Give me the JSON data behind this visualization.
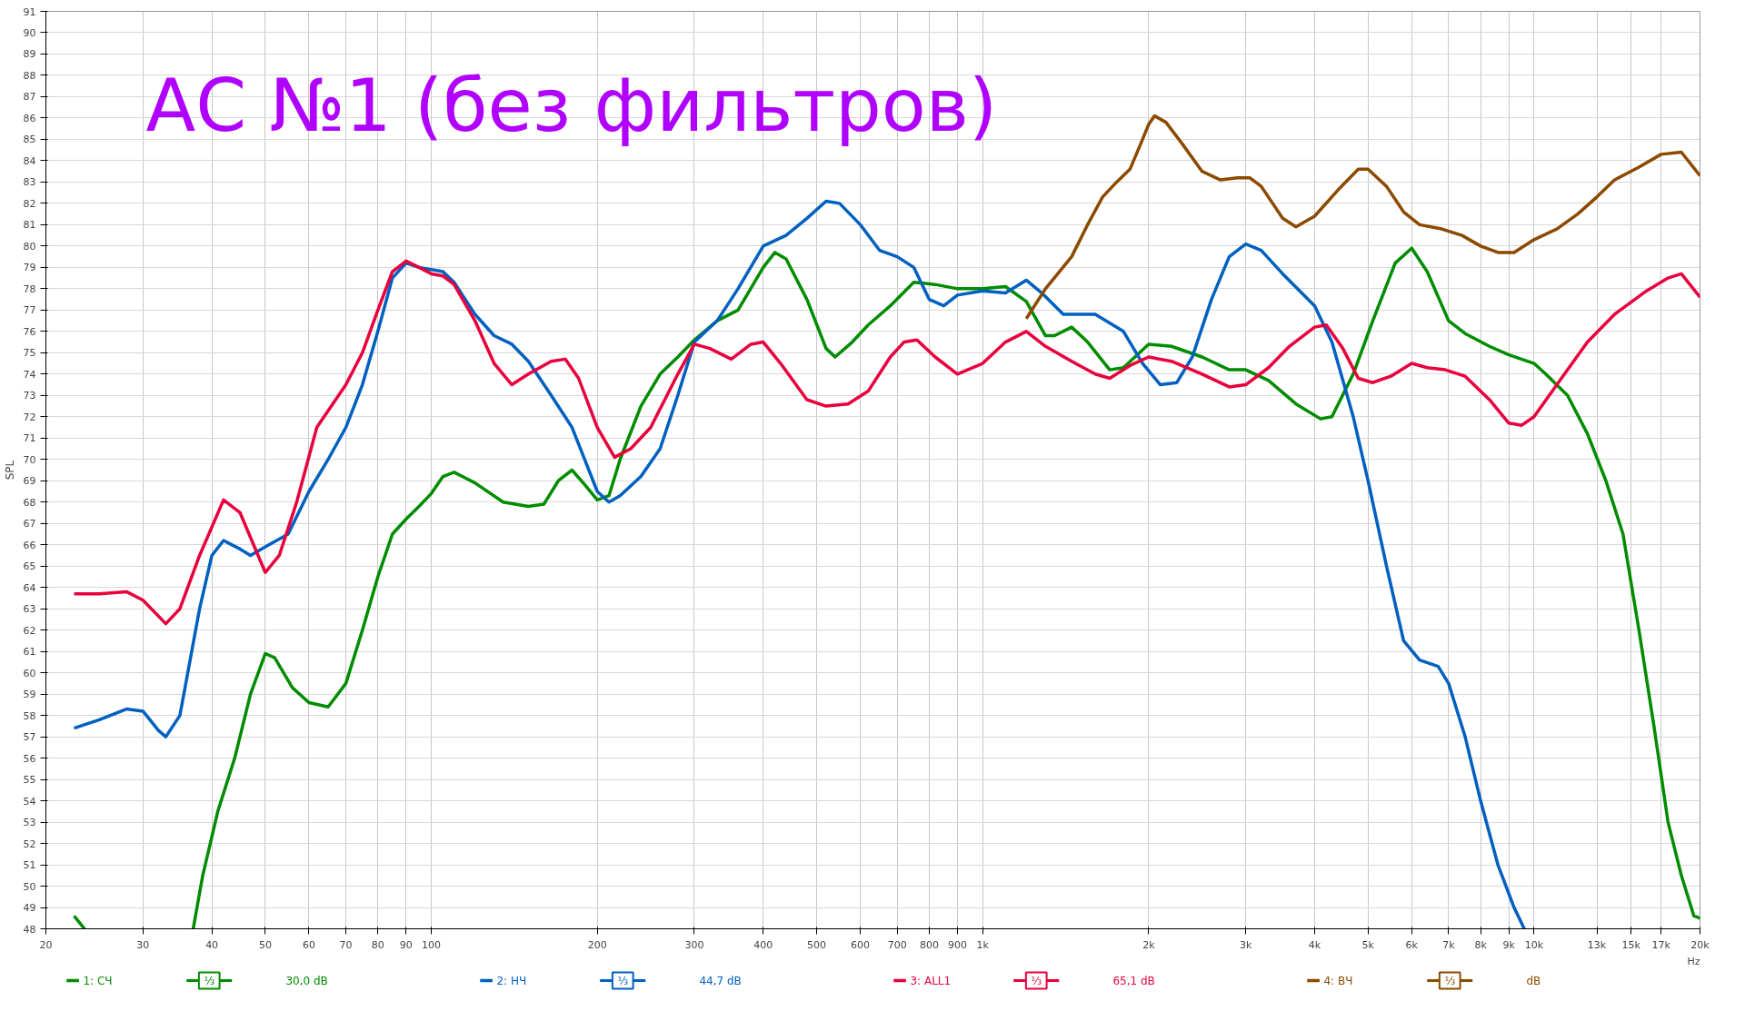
{
  "chart_data": {
    "type": "line",
    "title": "АС №1 (без фильтров)",
    "ylabel": "SPL",
    "log": "x",
    "grid": true,
    "legend": "bottom",
    "xlim": [
      20,
      20000
    ],
    "ylim": [
      48,
      91
    ],
    "xticks": [
      20,
      30,
      40,
      50,
      60,
      70,
      80,
      90,
      100,
      200,
      300,
      400,
      500,
      600,
      700,
      800,
      900,
      {
        "value": 1000,
        "label": "1k"
      },
      {
        "value": 2000,
        "label": "2k"
      },
      {
        "value": 3000,
        "label": "3k"
      },
      {
        "value": 4000,
        "label": "4k"
      },
      {
        "value": 5000,
        "label": "5k"
      },
      {
        "value": 6000,
        "label": "6k"
      },
      {
        "value": 7000,
        "label": "7k"
      },
      {
        "value": 8000,
        "label": "8k"
      },
      {
        "value": 9000,
        "label": "9k"
      },
      {
        "value": 10000,
        "label": "10k"
      },
      {
        "value": 13000,
        "label": "13k"
      },
      {
        "value": 15000,
        "label": "15k"
      },
      {
        "value": 17000,
        "label": "17k"
      },
      {
        "value": 20000,
        "label": "20k"
      }
    ],
    "xlabel": "Hz",
    "yticks": [
      48,
      49,
      50,
      51,
      52,
      53,
      54,
      55,
      56,
      57,
      58,
      59,
      60,
      61,
      62,
      63,
      64,
      65,
      66,
      67,
      68,
      69,
      70,
      71,
      72,
      73,
      74,
      75,
      76,
      77,
      78,
      79,
      80,
      81,
      82,
      83,
      84,
      85,
      86,
      87,
      88,
      89,
      90,
      91
    ],
    "annotations": [
      "⅓",
      "30,0 dB",
      "⅓",
      "44,7 dB",
      "⅓",
      "65,1 dB",
      "⅓",
      "dB"
    ],
    "series": [
      {
        "name": "1: СЧ",
        "color": "#008c00",
        "x": [
          22.5,
          23.5,
          30,
          37,
          38.5,
          41,
          44,
          47,
          50,
          52,
          56,
          60,
          65,
          70,
          75,
          80,
          85,
          90,
          95,
          100,
          105,
          110,
          120,
          135,
          150,
          160,
          170,
          180,
          190,
          200,
          210,
          220,
          240,
          260,
          280,
          300,
          330,
          360,
          400,
          420,
          440,
          480,
          520,
          540,
          580,
          620,
          680,
          750,
          820,
          900,
          1000,
          1100,
          1200,
          1300,
          1350,
          1450,
          1550,
          1700,
          1800,
          2000,
          2200,
          2500,
          2800,
          3000,
          3300,
          3700,
          4100,
          4300,
          4700,
          5100,
          5600,
          6000,
          6400,
          7000,
          7500,
          8300,
          9000,
          10000,
          10500,
          11500,
          12500,
          13500,
          14500,
          15500,
          16500,
          17500,
          18500,
          19500,
          20000
        ],
        "values": [
          48.6,
          48,
          null,
          48,
          50.5,
          53.5,
          56,
          59,
          60.9,
          60.7,
          59.3,
          58.6,
          58.4,
          59.5,
          62,
          64.5,
          66.5,
          67.2,
          67.8,
          68.4,
          69.2,
          69.4,
          68.9,
          68,
          67.8,
          67.9,
          69,
          69.5,
          68.8,
          68.1,
          68.3,
          70,
          72.5,
          74,
          74.8,
          75.6,
          76.5,
          77,
          79,
          79.7,
          79.4,
          77.5,
          75.2,
          74.8,
          75.5,
          76.3,
          77.2,
          78.3,
          78.2,
          78,
          78,
          78.1,
          77.4,
          75.8,
          75.8,
          76.2,
          75.5,
          74.2,
          74.3,
          75.4,
          75.3,
          74.8,
          74.2,
          74.2,
          73.7,
          72.6,
          71.9,
          72,
          74,
          76.5,
          79.2,
          79.9,
          78.8,
          76.5,
          75.9,
          75.3,
          74.9,
          74.5,
          74,
          73,
          71.2,
          69,
          66.5,
          62,
          57.5,
          53,
          50.5,
          48.6,
          48.5
        ]
      },
      {
        "name": "2: НЧ",
        "color": "#0060c0",
        "x": [
          22.5,
          25,
          28,
          30,
          32,
          33,
          35,
          38,
          40,
          42,
          45,
          47,
          50,
          55,
          60,
          65,
          70,
          75,
          80,
          85,
          90,
          95,
          100,
          105,
          110,
          120,
          130,
          140,
          150,
          165,
          180,
          200,
          210,
          220,
          240,
          260,
          280,
          300,
          330,
          360,
          400,
          440,
          480,
          520,
          550,
          600,
          650,
          700,
          750,
          800,
          850,
          900,
          1000,
          1100,
          1200,
          1280,
          1400,
          1600,
          1800,
          1950,
          2100,
          2250,
          2400,
          2600,
          2800,
          3000,
          3200,
          3500,
          4000,
          4300,
          4700,
          5000,
          5400,
          5800,
          6200,
          6700,
          7000,
          7500,
          8000,
          8600,
          9200,
          9600
        ],
        "values": [
          57.4,
          57.8,
          58.3,
          58.2,
          57.3,
          57,
          58,
          63,
          65.5,
          66.2,
          65.8,
          65.5,
          65.9,
          66.5,
          68.5,
          70,
          71.5,
          73.5,
          76,
          78.5,
          79.2,
          79,
          78.9,
          78.8,
          78.3,
          76.8,
          75.8,
          75.4,
          74.6,
          73,
          71.5,
          68.5,
          68,
          68.3,
          69.2,
          70.5,
          73,
          75.5,
          76.5,
          78,
          80,
          80.5,
          81.3,
          82.1,
          82,
          81,
          79.8,
          79.5,
          79,
          77.5,
          77.2,
          77.7,
          77.9,
          77.8,
          78.4,
          77.8,
          76.8,
          76.8,
          76,
          74.5,
          73.5,
          73.6,
          74.8,
          77.5,
          79.5,
          80.1,
          79.8,
          78.7,
          77.2,
          75.5,
          72,
          69,
          65,
          61.5,
          60.6,
          60.3,
          59.5,
          57,
          54,
          51,
          49,
          48
        ]
      },
      {
        "name": "3: ALL1",
        "color": "#e8003c",
        "x": [
          22.5,
          25,
          28,
          30,
          33,
          35,
          38,
          42,
          45,
          50,
          53,
          57,
          62,
          70,
          75,
          80,
          85,
          90,
          95,
          100,
          105,
          110,
          120,
          130,
          140,
          150,
          165,
          175,
          185,
          200,
          215,
          230,
          250,
          280,
          300,
          320,
          350,
          380,
          400,
          430,
          480,
          520,
          570,
          620,
          680,
          720,
          760,
          820,
          900,
          1000,
          1100,
          1200,
          1300,
          1450,
          1600,
          1700,
          1850,
          2000,
          2200,
          2500,
          2800,
          3000,
          3300,
          3600,
          4000,
          4200,
          4500,
          4800,
          5100,
          5500,
          6000,
          6400,
          6900,
          7500,
          8300,
          9000,
          9500,
          10000,
          11000,
          12500,
          14000,
          16000,
          17500,
          18500,
          20000
        ],
        "values": [
          63.7,
          63.7,
          63.8,
          63.4,
          62.3,
          63,
          65.5,
          68.1,
          67.5,
          64.7,
          65.5,
          68,
          71.5,
          73.5,
          75,
          77,
          78.8,
          79.3,
          79,
          78.7,
          78.6,
          78.2,
          76.5,
          74.5,
          73.5,
          74,
          74.6,
          74.7,
          73.8,
          71.5,
          70.1,
          70.5,
          71.5,
          74,
          75.4,
          75.2,
          74.7,
          75.4,
          75.5,
          74.5,
          72.8,
          72.5,
          72.6,
          73.2,
          74.8,
          75.5,
          75.6,
          74.8,
          74,
          74.5,
          75.5,
          76,
          75.3,
          74.6,
          74,
          73.8,
          74.4,
          74.8,
          74.6,
          74,
          73.4,
          73.5,
          74.3,
          75.3,
          76.2,
          76.3,
          75.2,
          73.8,
          73.6,
          73.9,
          74.5,
          74.3,
          74.2,
          73.9,
          72.8,
          71.7,
          71.6,
          72,
          73.5,
          75.5,
          76.8,
          77.9,
          78.5,
          78.7,
          77.6
        ]
      },
      {
        "name": "4: ВЧ",
        "color": "#8b4a00",
        "x": [
          1200,
          1300,
          1450,
          1550,
          1650,
          1750,
          1850,
          1950,
          2000,
          2050,
          2150,
          2300,
          2500,
          2700,
          2900,
          3050,
          3200,
          3500,
          3700,
          4000,
          4400,
          4800,
          5000,
          5400,
          5800,
          6200,
          6800,
          7400,
          8000,
          8600,
          9200,
          10000,
          11000,
          12000,
          13000,
          14000,
          15500,
          17000,
          18500,
          20000
        ],
        "values": [
          76.6,
          78,
          79.5,
          81,
          82.3,
          83,
          83.6,
          85,
          85.7,
          86.1,
          85.8,
          84.8,
          83.5,
          83.1,
          83.2,
          83.2,
          82.8,
          81.3,
          80.9,
          81.4,
          82.6,
          83.6,
          83.6,
          82.8,
          81.6,
          81,
          80.8,
          80.5,
          80,
          79.7,
          79.7,
          80.3,
          80.8,
          81.5,
          82.3,
          83.1,
          83.7,
          84.3,
          84.4,
          83.3
        ]
      }
    ]
  }
}
